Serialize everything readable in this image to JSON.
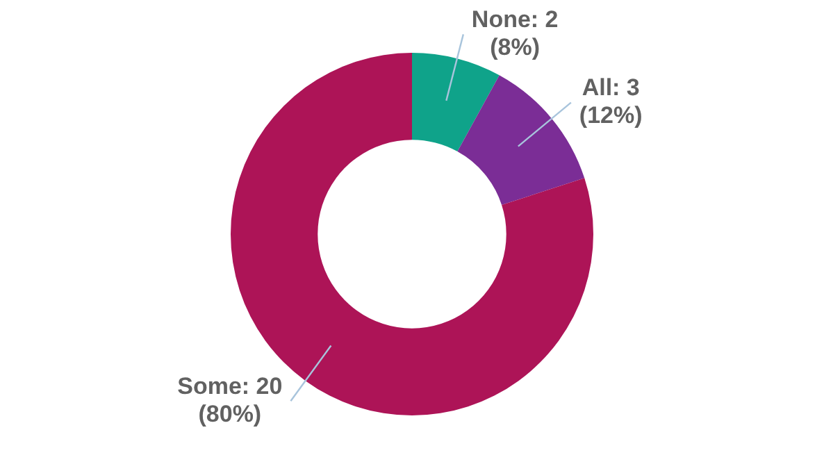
{
  "chart_data": {
    "type": "donut",
    "categories": [
      "None",
      "All",
      "Some"
    ],
    "values": [
      2,
      3,
      20
    ],
    "colors": [
      "#0fa38a",
      "#7b2d96",
      "#ad1457"
    ],
    "value_labels": [
      "2 (8%)",
      "3 (12%)",
      "20 (80%)"
    ],
    "legend": false
  }
}
